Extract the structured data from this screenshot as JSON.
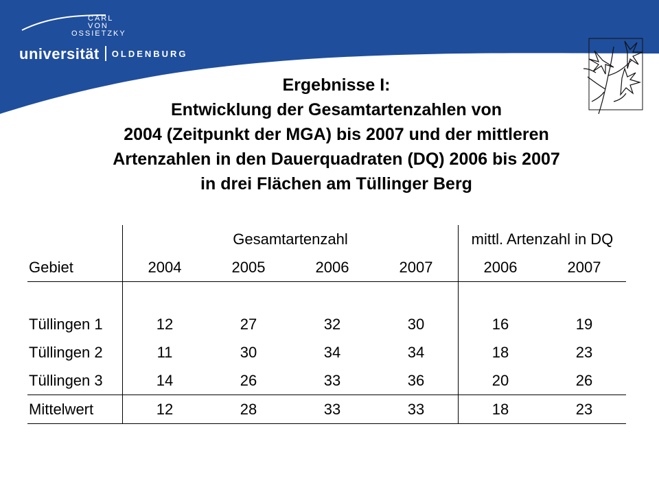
{
  "logo": {
    "small_lines": [
      "CARL",
      "VON",
      "OSSIETZKY"
    ],
    "university": "universität",
    "city": "OLDENBURG"
  },
  "colors": {
    "brand_blue": "#1f4e9c",
    "text": "#000000",
    "background": "#ffffff"
  },
  "illustration": {
    "icon": "flower-illustration-icon"
  },
  "title_lines": [
    "Ergebnisse I:",
    "Entwicklung der Gesamtartenzahlen von",
    "2004 (Zeitpunkt der MGA) bis 2007 und der mittleren",
    "Artenzahlen in den Dauerquadraten (DQ) 2006 bis 2007",
    "in drei Flächen am Tüllinger Berg"
  ],
  "table": {
    "group_headers": [
      "Gesamtartenzahl",
      "mittl. Artenzahl in DQ"
    ],
    "columns": [
      "Gebiet",
      "2004",
      "2005",
      "2006",
      "2007",
      "2006",
      "2007"
    ],
    "rows": [
      [
        "Tüllingen 1",
        "12",
        "27",
        "32",
        "30",
        "16",
        "19"
      ],
      [
        "Tüllingen 2",
        "11",
        "30",
        "34",
        "34",
        "18",
        "23"
      ],
      [
        "Tüllingen 3",
        "14",
        "26",
        "33",
        "36",
        "20",
        "26"
      ]
    ],
    "summary": [
      "Mittelwert",
      "12",
      "28",
      "33",
      "33",
      "18",
      "23"
    ]
  }
}
